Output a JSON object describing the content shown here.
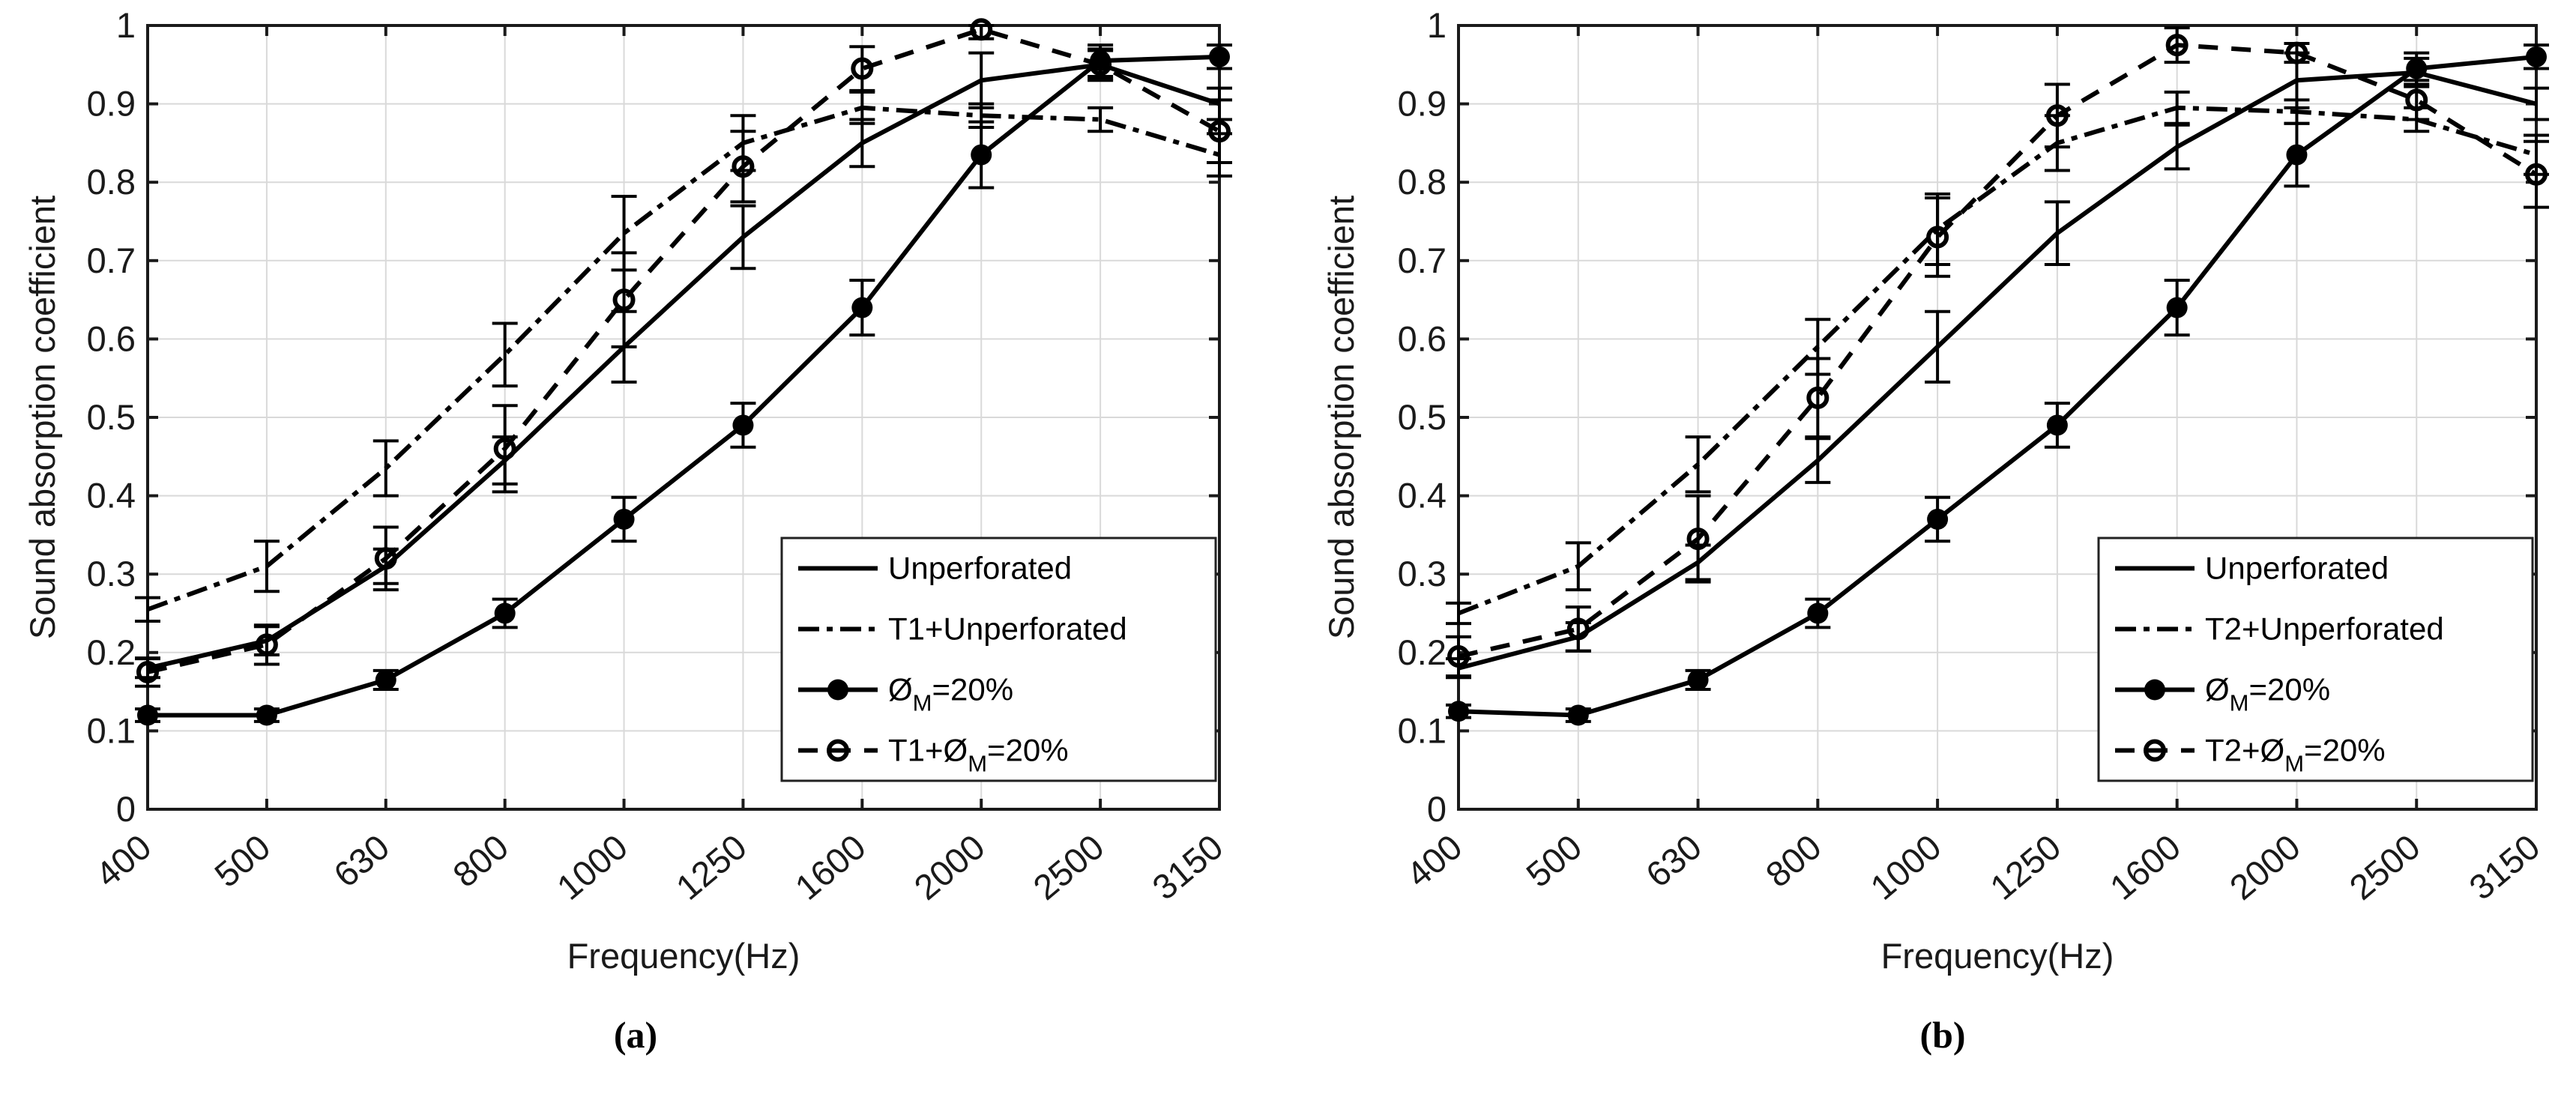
{
  "figure": {
    "background_color": "#ffffff",
    "data_color": "#000000",
    "grid_color": "#d9d9d9",
    "frame_color": "#1a1a1a"
  },
  "chart_data": [
    {
      "type": "line",
      "panel": "a",
      "caption": "(a)",
      "xlabel": "Frequency(Hz)",
      "ylabel": "Sound absorption coefficient",
      "categories": [
        "400",
        "500",
        "630",
        "800",
        "1000",
        "1250",
        "1600",
        "2000",
        "2500",
        "3150"
      ],
      "yticks": [
        "0",
        "0.1",
        "0.2",
        "0.3",
        "0.4",
        "0.5",
        "0.6",
        "0.7",
        "0.8",
        "0.9",
        "1"
      ],
      "ylim": [
        0,
        1
      ],
      "grid": true,
      "legend_position": "lower right",
      "series": [
        {
          "name": "Unperforated",
          "label_parts": {
            "main": "Unperforated",
            "sub": "",
            "suffix": ""
          },
          "line": "solid",
          "marker": "none",
          "values": [
            0.18,
            0.215,
            0.31,
            0.445,
            0.59,
            0.73,
            0.85,
            0.93,
            0.95,
            0.9
          ],
          "errors": [
            0.012,
            0.018,
            0.022,
            0.03,
            0.045,
            0.04,
            0.03,
            0.035,
            0.018,
            0.02
          ]
        },
        {
          "name": "T1+Unperforated",
          "label_parts": {
            "main": "T1+Unperforated",
            "sub": "",
            "suffix": ""
          },
          "line": "dashdot",
          "marker": "none",
          "values": [
            0.255,
            0.31,
            0.435,
            0.58,
            0.735,
            0.85,
            0.895,
            0.885,
            0.88,
            0.835
          ],
          "errors": [
            0.015,
            0.032,
            0.035,
            0.04,
            0.047,
            0.035,
            0.02,
            0.015,
            0.015,
            0.027
          ]
        },
        {
          "name": "ØM=20%",
          "label_parts": {
            "main": "Ø",
            "sub": "M",
            "suffix": "=20%"
          },
          "line": "solid",
          "marker": "filled-circle",
          "values": [
            0.12,
            0.12,
            0.165,
            0.25,
            0.37,
            0.49,
            0.64,
            0.835,
            0.955,
            0.96
          ],
          "errors": [
            0.008,
            0.008,
            0.012,
            0.018,
            0.028,
            0.028,
            0.035,
            0.042,
            0.02,
            0.015
          ]
        },
        {
          "name": "T1+ØM=20%",
          "label_parts": {
            "main": "T1+Ø",
            "sub": "M",
            "suffix": "=20%"
          },
          "line": "dashed",
          "marker": "open-circle",
          "values": [
            0.175,
            0.21,
            0.32,
            0.46,
            0.65,
            0.82,
            0.945,
            0.995,
            0.95,
            0.865
          ],
          "errors": [
            0.018,
            0.025,
            0.04,
            0.055,
            0.06,
            0.045,
            0.028,
            0.012,
            0.02,
            0.04
          ]
        }
      ]
    },
    {
      "type": "line",
      "panel": "b",
      "caption": "(b)",
      "xlabel": "Frequency(Hz)",
      "ylabel": "Sound absorption coefficient",
      "categories": [
        "400",
        "500",
        "630",
        "800",
        "1000",
        "1250",
        "1600",
        "2000",
        "2500",
        "3150"
      ],
      "yticks": [
        "0",
        "0.1",
        "0.2",
        "0.3",
        "0.4",
        "0.5",
        "0.6",
        "0.7",
        "0.8",
        "0.9",
        "1"
      ],
      "ylim": [
        0,
        1
      ],
      "grid": true,
      "legend_position": "lower right",
      "series": [
        {
          "name": "Unperforated",
          "label_parts": {
            "main": "Unperforated",
            "sub": "",
            "suffix": ""
          },
          "line": "solid",
          "marker": "none",
          "values": [
            0.18,
            0.22,
            0.315,
            0.445,
            0.59,
            0.735,
            0.845,
            0.93,
            0.94,
            0.9
          ],
          "errors": [
            0.012,
            0.018,
            0.022,
            0.028,
            0.045,
            0.04,
            0.028,
            0.035,
            0.018,
            0.02
          ]
        },
        {
          "name": "T2+Unperforated",
          "label_parts": {
            "main": "T2+Unperforated",
            "sub": "",
            "suffix": ""
          },
          "line": "dashdot",
          "marker": "none",
          "values": [
            0.25,
            0.31,
            0.44,
            0.59,
            0.74,
            0.85,
            0.895,
            0.89,
            0.88,
            0.835
          ],
          "errors": [
            0.013,
            0.03,
            0.035,
            0.035,
            0.045,
            0.035,
            0.02,
            0.015,
            0.015,
            0.025
          ]
        },
        {
          "name": "ØM=20%",
          "label_parts": {
            "main": "Ø",
            "sub": "M",
            "suffix": "=20%"
          },
          "line": "solid",
          "marker": "filled-circle",
          "values": [
            0.125,
            0.12,
            0.165,
            0.25,
            0.37,
            0.49,
            0.64,
            0.835,
            0.945,
            0.96
          ],
          "errors": [
            0.008,
            0.008,
            0.012,
            0.018,
            0.028,
            0.028,
            0.035,
            0.04,
            0.02,
            0.015
          ]
        },
        {
          "name": "T2+ØM=20%",
          "label_parts": {
            "main": "T2+Ø",
            "sub": "M",
            "suffix": "=20%"
          },
          "line": "dashed",
          "marker": "open-circle",
          "values": [
            0.195,
            0.23,
            0.345,
            0.525,
            0.73,
            0.885,
            0.975,
            0.965,
            0.905,
            0.81
          ],
          "errors": [
            0.025,
            0.028,
            0.055,
            0.05,
            0.05,
            0.04,
            0.022,
            0.012,
            0.025,
            0.042
          ]
        }
      ]
    }
  ]
}
